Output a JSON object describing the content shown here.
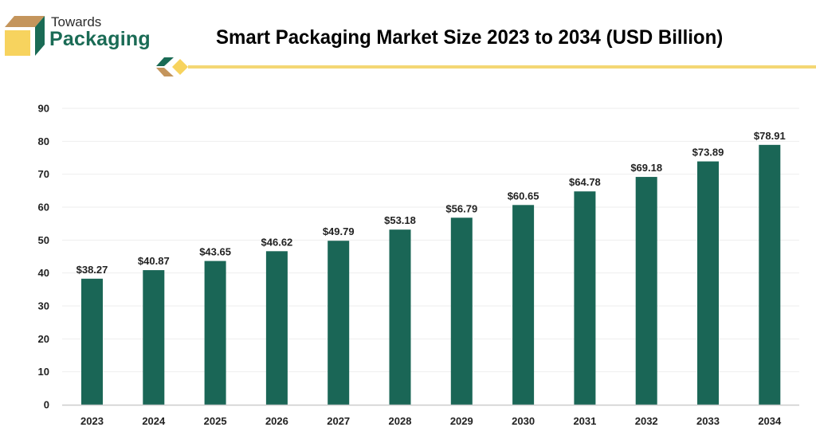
{
  "brand": {
    "line1": "Towards",
    "line2": "Packaging",
    "colors": {
      "green": "#1a6b55",
      "yellow": "#f7d35e",
      "tan": "#c4955c"
    }
  },
  "title": "Smart Packaging Market Size 2023 to 2034 (USD Billion)",
  "accent_line_color": "#f4d774",
  "chart_data": {
    "type": "bar",
    "title": "Smart Packaging Market Size 2023 to 2034 (USD Billion)",
    "xlabel": "",
    "ylabel": "",
    "categories": [
      "2023",
      "2024",
      "2025",
      "2026",
      "2027",
      "2028",
      "2029",
      "2030",
      "2031",
      "2032",
      "2033",
      "2034"
    ],
    "values": [
      38.27,
      40.87,
      43.65,
      46.62,
      49.79,
      53.18,
      56.79,
      60.65,
      64.78,
      69.18,
      73.89,
      78.91
    ],
    "data_labels": [
      "$38.27",
      "$40.87",
      "$43.65",
      "$46.62",
      "$49.79",
      "$53.18",
      "$56.79",
      "$60.65",
      "$64.78",
      "$69.18",
      "$73.89",
      "$78.91"
    ],
    "ylim": [
      0,
      90
    ],
    "yticks": [
      0,
      10,
      20,
      30,
      40,
      50,
      60,
      70,
      80,
      90
    ],
    "grid": true,
    "legend": "none",
    "bar_color": "#1a6656",
    "grid_color": "#eeeeee",
    "axis_color": "#cccccc"
  }
}
